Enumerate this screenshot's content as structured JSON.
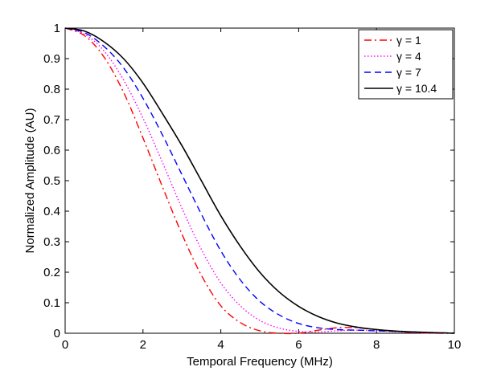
{
  "chart_data": {
    "type": "line",
    "title": "",
    "xlabel": "Temporal Frequency (MHz)",
    "ylabel": "Normalized Amplitude (AU)",
    "xlim": [
      0,
      10
    ],
    "ylim": [
      0,
      1
    ],
    "xticks": [
      0,
      2,
      4,
      6,
      8,
      10
    ],
    "yticks": [
      0,
      0.1,
      0.2,
      0.3,
      0.4,
      0.5,
      0.6,
      0.7,
      0.8,
      0.9,
      1
    ],
    "legend_position": "top-right",
    "x": [
      0,
      0.5,
      1,
      1.5,
      2,
      2.5,
      3,
      3.5,
      4,
      4.5,
      5,
      5.5,
      6,
      6.5,
      7,
      7.5,
      8,
      8.5,
      9,
      9.5,
      10
    ],
    "series": [
      {
        "name": "γ = 1",
        "color": "#ff0000",
        "style": "dash-dot",
        "values": [
          1.0,
          0.975,
          0.905,
          0.79,
          0.64,
          0.48,
          0.325,
          0.19,
          0.09,
          0.035,
          0.008,
          0.0,
          0.0,
          0.01,
          0.018,
          0.018,
          0.012,
          0.006,
          0.002,
          0.0,
          0.0
        ]
      },
      {
        "name": "γ = 4",
        "color": "#ff00ff",
        "style": "dotted",
        "values": [
          1.0,
          0.98,
          0.925,
          0.83,
          0.705,
          0.56,
          0.41,
          0.275,
          0.165,
          0.09,
          0.042,
          0.017,
          0.006,
          0.004,
          0.008,
          0.01,
          0.008,
          0.005,
          0.002,
          0.001,
          0.0
        ]
      },
      {
        "name": "γ = 7",
        "color": "#0000ff",
        "style": "dashed",
        "values": [
          1.0,
          0.985,
          0.94,
          0.87,
          0.77,
          0.65,
          0.52,
          0.39,
          0.27,
          0.175,
          0.105,
          0.06,
          0.032,
          0.018,
          0.012,
          0.01,
          0.008,
          0.006,
          0.004,
          0.002,
          0.001
        ]
      },
      {
        "name": "γ = 10.4",
        "color": "#000000",
        "style": "solid",
        "values": [
          1.0,
          0.99,
          0.955,
          0.9,
          0.82,
          0.72,
          0.615,
          0.5,
          0.385,
          0.285,
          0.2,
          0.135,
          0.088,
          0.055,
          0.033,
          0.02,
          0.012,
          0.007,
          0.004,
          0.002,
          0.0
        ]
      }
    ]
  }
}
